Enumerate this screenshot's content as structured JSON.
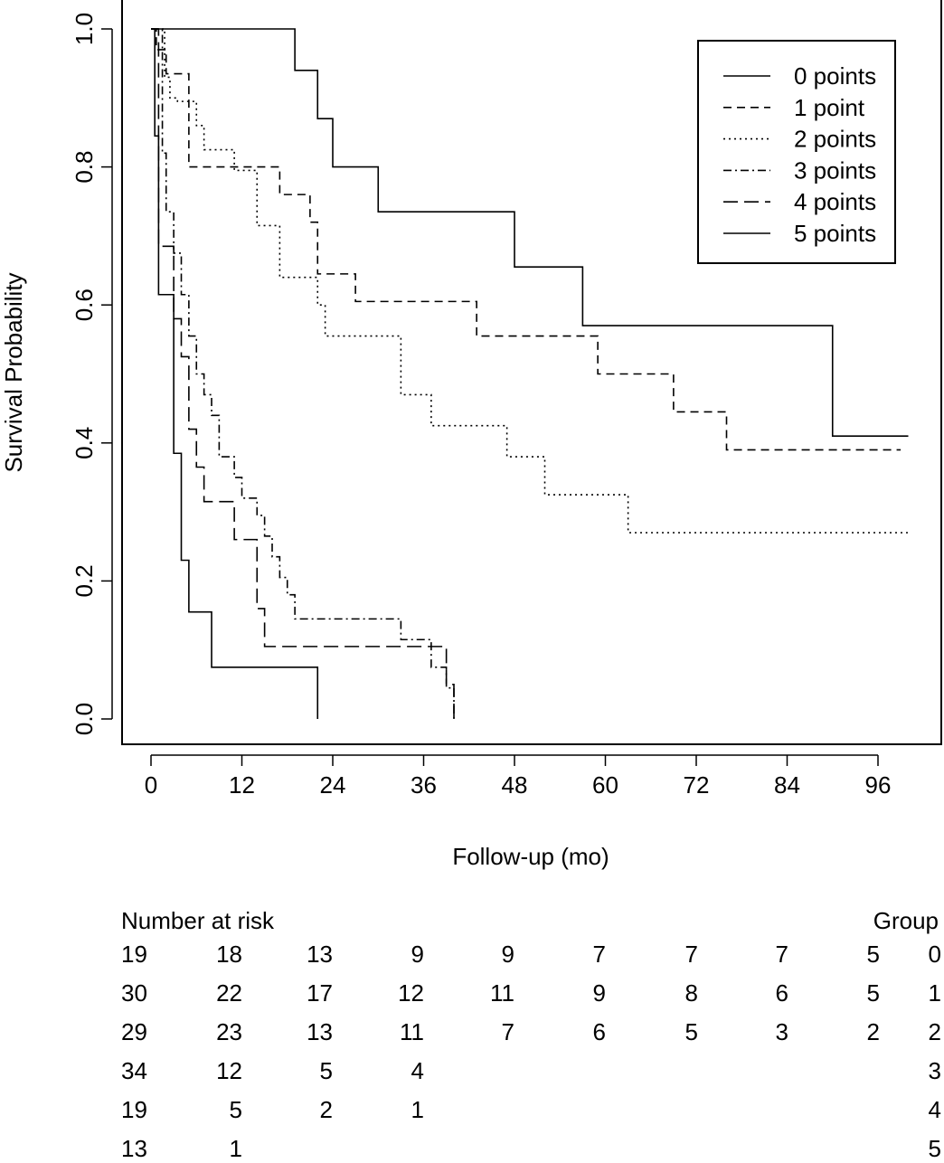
{
  "chart_data": {
    "type": "line",
    "subtype": "kaplan-meier",
    "title": "",
    "xlabel": "Follow-up (mo)",
    "ylabel": "Survival Probability",
    "xlim": [
      -8,
      103
    ],
    "ylim": [
      -0.04,
      1.04
    ],
    "xticks": [
      0,
      12,
      24,
      36,
      48,
      60,
      72,
      84,
      96
    ],
    "yticks": [
      0.0,
      0.2,
      0.4,
      0.6,
      0.8,
      1.0
    ],
    "ytick_labels": [
      "0.0",
      "0.2",
      "0.4",
      "0.6",
      "0.8",
      "1.0"
    ],
    "legend": {
      "position": "top-right",
      "entries": [
        "0 points",
        "1 point",
        "2 points",
        "3 points",
        "4 points",
        "5 points"
      ]
    },
    "series": [
      {
        "name": "0 points",
        "line_style": "solid",
        "x": [
          0,
          19,
          22,
          24,
          30,
          48,
          57,
          90,
          100
        ],
        "y": [
          1.0,
          0.94,
          0.87,
          0.8,
          0.735,
          0.655,
          0.57,
          0.41,
          0.41
        ]
      },
      {
        "name": "1 point",
        "line_style": "dashed",
        "x": [
          0,
          0.7,
          2,
          5,
          11,
          17,
          21,
          22,
          27,
          43,
          59,
          69,
          76,
          99
        ],
        "y": [
          1.0,
          0.97,
          0.935,
          0.8,
          0.8,
          0.76,
          0.72,
          0.645,
          0.605,
          0.555,
          0.5,
          0.445,
          0.39,
          0.39
        ]
      },
      {
        "name": "2 points",
        "line_style": "dotted",
        "x": [
          0,
          1.8,
          2.5,
          3.5,
          6,
          7,
          11,
          14,
          17,
          22,
          23,
          33,
          37,
          47,
          52,
          63,
          100
        ],
        "y": [
          1.0,
          0.93,
          0.9,
          0.895,
          0.86,
          0.825,
          0.795,
          0.715,
          0.64,
          0.6,
          0.555,
          0.47,
          0.425,
          0.38,
          0.325,
          0.27,
          0.27
        ]
      },
      {
        "name": "3 points",
        "line_style": "dotdash",
        "x": [
          0,
          1.5,
          2,
          3,
          4,
          5,
          6,
          7,
          8,
          9,
          11,
          12,
          14,
          15,
          16,
          17,
          18,
          19,
          21,
          33,
          37,
          39,
          40
        ],
        "y": [
          1.0,
          0.82,
          0.735,
          0.675,
          0.615,
          0.555,
          0.5,
          0.47,
          0.44,
          0.38,
          0.35,
          0.32,
          0.295,
          0.265,
          0.235,
          0.205,
          0.18,
          0.145,
          0.145,
          0.115,
          0.075,
          0.045,
          0.0
        ]
      },
      {
        "name": "4 points",
        "line_style": "longdash",
        "x": [
          0,
          1,
          3,
          4,
          5,
          6,
          7,
          11,
          14,
          15,
          31,
          39,
          40
        ],
        "y": [
          1.0,
          0.685,
          0.58,
          0.525,
          0.42,
          0.365,
          0.315,
          0.26,
          0.16,
          0.105,
          0.105,
          0.05,
          0.0
        ]
      },
      {
        "name": "5 points",
        "line_style": "solid",
        "x": [
          0,
          0.5,
          1,
          3,
          4,
          5,
          8,
          22
        ],
        "y": [
          1.0,
          0.845,
          0.615,
          0.385,
          0.23,
          0.155,
          0.075,
          0.0
        ]
      }
    ]
  },
  "risk_table": {
    "title": "Number at risk",
    "group_header": "Group",
    "rows": [
      {
        "group": "0",
        "values": [
          "19",
          "18",
          "13",
          "9",
          "9",
          "7",
          "7",
          "7",
          "5"
        ]
      },
      {
        "group": "1",
        "values": [
          "30",
          "22",
          "17",
          "12",
          "11",
          "9",
          "8",
          "6",
          "5"
        ]
      },
      {
        "group": "2",
        "values": [
          "29",
          "23",
          "13",
          "11",
          "7",
          "6",
          "5",
          "3",
          "2"
        ]
      },
      {
        "group": "3",
        "values": [
          "34",
          "12",
          "5",
          "4",
          "",
          "",
          "",
          "",
          ""
        ]
      },
      {
        "group": "4",
        "values": [
          "19",
          "5",
          "2",
          "1",
          "",
          "",
          "",
          "",
          ""
        ]
      },
      {
        "group": "5",
        "values": [
          "13",
          "1",
          "",
          "",
          "",
          "",
          "",
          "",
          ""
        ]
      }
    ]
  }
}
